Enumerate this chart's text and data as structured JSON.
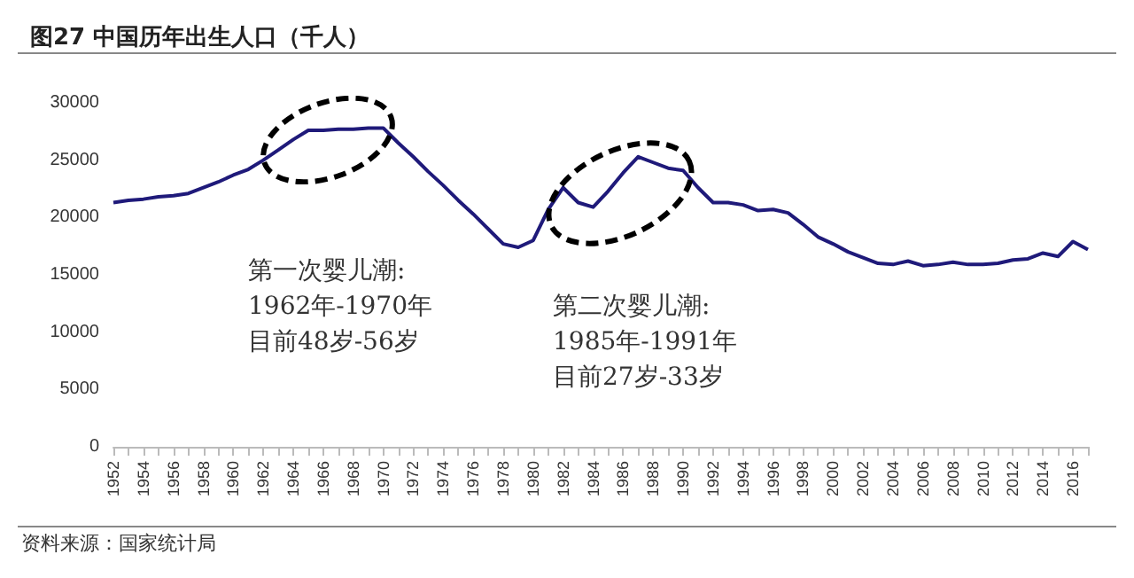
{
  "chart_data": {
    "type": "line",
    "title": "图27 中国历年出生人口（千人）",
    "categories": [
      "1952",
      null,
      "1954",
      null,
      "1956",
      null,
      "1958",
      null,
      "1960",
      null,
      "1962",
      null,
      "1964",
      null,
      "1966",
      null,
      "1968",
      null,
      "1970",
      null,
      "1972",
      null,
      "1974",
      null,
      "1976",
      null,
      "1978",
      null,
      "1980",
      null,
      "1982",
      null,
      "1984",
      null,
      "1986",
      null,
      "1988",
      null,
      "1990",
      null,
      "1992",
      null,
      "1994",
      null,
      "1996",
      null,
      "1998",
      null,
      "2000",
      null,
      "2002",
      null,
      "2004",
      null,
      "2006",
      null,
      "2008",
      null,
      "2010",
      null,
      "2012",
      null,
      "2014",
      null,
      "2016",
      null
    ],
    "series": [
      {
        "color": "#1f1a7a",
        "values": [
          21300,
          21500,
          21600,
          21800,
          21900,
          22100,
          22600,
          23100,
          23700,
          24200,
          25000,
          25900,
          26800,
          27600,
          27600,
          27700,
          27700,
          27800,
          27800,
          26500,
          25300,
          24000,
          22800,
          21500,
          20300,
          19000,
          17700,
          17400,
          18000,
          20700,
          22600,
          21300,
          20900,
          22300,
          23900,
          25300,
          24800,
          24300,
          24100,
          22600,
          21300,
          21300,
          21100,
          20600,
          20700,
          20400,
          19400,
          18300,
          17700,
          17000,
          16500,
          16000,
          15900,
          16200,
          15800,
          15900,
          16100,
          15900,
          15900,
          16000,
          16300,
          16400,
          16900,
          16600,
          17900,
          17200
        ]
      }
    ],
    "ylim": [
      0,
      30000
    ],
    "yticks": [
      0,
      5000,
      10000,
      15000,
      20000,
      25000,
      30000
    ],
    "grid": false,
    "marker": "none",
    "line_style": "solid",
    "annotations": [
      "第一次婴儿潮:",
      "1962年-1970年",
      "目前48岁-56岁",
      "第二次婴儿潮:",
      "1985年-1991年",
      "目前27岁-33岁",
      "资料来源：国家统计局"
    ]
  }
}
